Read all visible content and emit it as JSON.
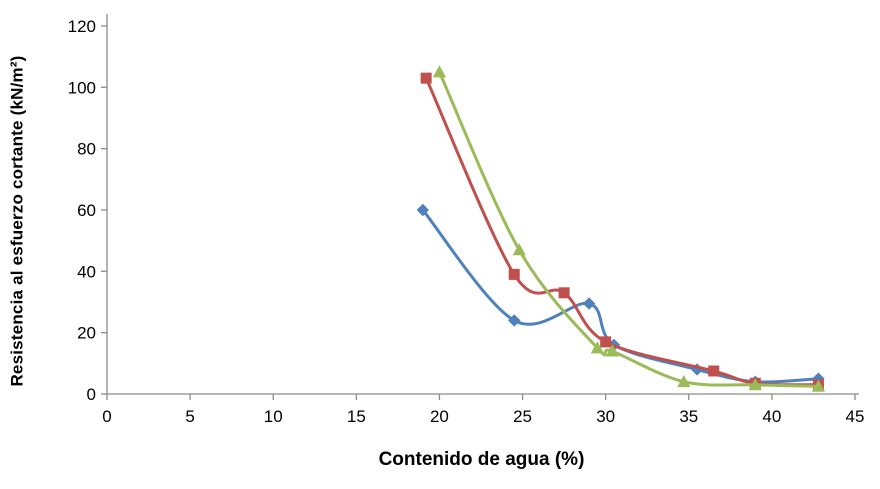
{
  "chart_data": {
    "type": "line",
    "title": "",
    "xlabel": "Contenido de agua (%)",
    "ylabel": "Resistencia al esfuerzo cortante (kN/m²)",
    "xlim": [
      0,
      45
    ],
    "ylim": [
      0,
      120
    ],
    "x_ticks": [
      0,
      5,
      10,
      15,
      20,
      25,
      30,
      35,
      40,
      45
    ],
    "y_ticks": [
      0,
      20,
      40,
      60,
      80,
      100,
      120
    ],
    "grid": false,
    "legend": "none",
    "line_style": "smooth",
    "axis_color": "#8C8C8C",
    "tick_label_color": "#000000",
    "series": [
      {
        "name": "series-1-blue",
        "color": "#4F81BD",
        "marker": "diamond",
        "points": [
          [
            19,
            60
          ],
          [
            24.5,
            24
          ],
          [
            29,
            29.5
          ],
          [
            30.5,
            16
          ],
          [
            35.5,
            8
          ],
          [
            39,
            4
          ],
          [
            42.8,
            5
          ]
        ]
      },
      {
        "name": "series-2-red",
        "color": "#C0504D",
        "marker": "square",
        "points": [
          [
            19.2,
            103
          ],
          [
            24.5,
            39
          ],
          [
            27.5,
            33
          ],
          [
            30,
            17
          ],
          [
            36.5,
            7.5
          ],
          [
            39,
            3.5
          ],
          [
            42.8,
            3
          ]
        ]
      },
      {
        "name": "series-3-green",
        "color": "#9BBB59",
        "marker": "triangle",
        "points": [
          [
            20,
            105
          ],
          [
            24.8,
            47
          ],
          [
            29.5,
            15
          ],
          [
            30.4,
            14
          ],
          [
            34.7,
            4
          ],
          [
            39,
            3
          ],
          [
            42.8,
            2.5
          ]
        ]
      }
    ]
  }
}
